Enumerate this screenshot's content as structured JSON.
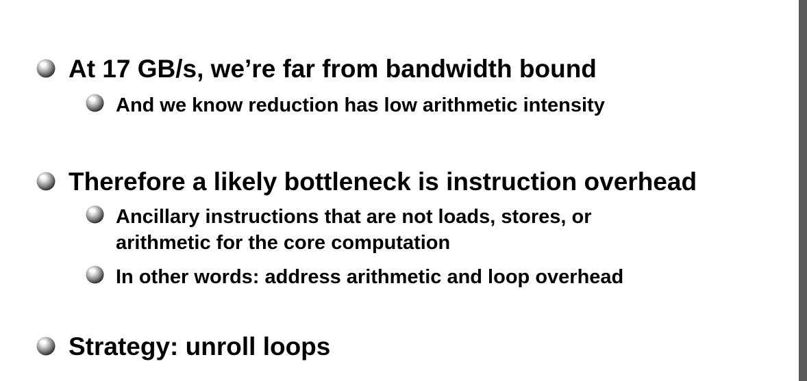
{
  "slide": {
    "bullets": [
      {
        "text": "At 17 GB/s, we’re far from bandwidth bound",
        "sub": [
          {
            "lines": [
              "And we know reduction has low arithmetic intensity"
            ]
          }
        ]
      },
      {
        "text": "Therefore a likely bottleneck is instruction overhead",
        "sub": [
          {
            "lines": [
              "Ancillary instructions that are not loads, stores, or",
              "arithmetic for the core computation"
            ]
          },
          {
            "lines": [
              "In other words: address arithmetic and loop overhead"
            ]
          }
        ]
      },
      {
        "text": "Strategy: unroll loops",
        "sub": []
      }
    ]
  },
  "icons": {
    "bullet": "sphere-bullet-icon"
  },
  "colors": {
    "text": "#000000",
    "background": "#ffffff",
    "edge_bar": "#5a5a5a"
  }
}
